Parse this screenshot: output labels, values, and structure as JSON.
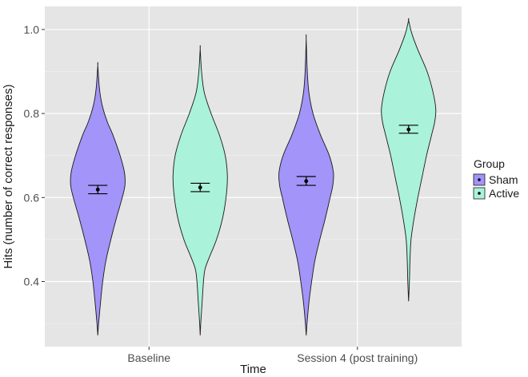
{
  "chart_data": {
    "type": "violin",
    "title": "",
    "xlabel": "Time",
    "ylabel": "Hits (number of correct responses)",
    "ylim": [
      0.245,
      1.055
    ],
    "y_ticks": [
      0.4,
      0.6,
      0.8,
      1.0
    ],
    "y_tick_labels": [
      "0.4",
      "0.6",
      "0.8",
      "1.0"
    ],
    "categories": [
      "Baseline",
      "Session 4 (post training)"
    ],
    "legend": {
      "title": "Group",
      "placement": "right",
      "items": [
        {
          "name": "Sham",
          "color": "#a294f8"
        },
        {
          "name": "Active",
          "color": "#aaf2d9"
        }
      ]
    },
    "series": [
      {
        "name": "Sham",
        "color": "#a294f8",
        "violins": [
          {
            "category": "Baseline",
            "min": 0.272,
            "max": 0.915,
            "mean": 0.619,
            "se_low": 0.609,
            "se_high": 0.629,
            "density": [
              [
                0.272,
                0.0
              ],
              [
                0.3,
                0.03
              ],
              [
                0.35,
                0.1
              ],
              [
                0.4,
                0.18
              ],
              [
                0.45,
                0.3
              ],
              [
                0.5,
                0.48
              ],
              [
                0.55,
                0.68
              ],
              [
                0.6,
                0.9
              ],
              [
                0.63,
                1.0
              ],
              [
                0.66,
                0.98
              ],
              [
                0.7,
                0.82
              ],
              [
                0.75,
                0.55
              ],
              [
                0.78,
                0.35
              ],
              [
                0.82,
                0.16
              ],
              [
                0.86,
                0.06
              ],
              [
                0.915,
                0.0
              ]
            ]
          },
          {
            "category": "Session 4 (post training)",
            "min": 0.272,
            "max": 0.978,
            "mean": 0.639,
            "se_low": 0.629,
            "se_high": 0.65,
            "density": [
              [
                0.272,
                0.0
              ],
              [
                0.3,
                0.03
              ],
              [
                0.35,
                0.1
              ],
              [
                0.4,
                0.2
              ],
              [
                0.45,
                0.32
              ],
              [
                0.5,
                0.5
              ],
              [
                0.55,
                0.7
              ],
              [
                0.6,
                0.88
              ],
              [
                0.63,
                0.98
              ],
              [
                0.66,
                1.0
              ],
              [
                0.7,
                0.85
              ],
              [
                0.75,
                0.52
              ],
              [
                0.8,
                0.25
              ],
              [
                0.85,
                0.1
              ],
              [
                0.9,
                0.04
              ],
              [
                0.978,
                0.0
              ]
            ]
          }
        ]
      },
      {
        "name": "Active",
        "color": "#aaf2d9",
        "violins": [
          {
            "category": "Baseline",
            "min": 0.272,
            "max": 0.955,
            "mean": 0.624,
            "se_low": 0.614,
            "se_high": 0.634,
            "density": [
              [
                0.272,
                0.0
              ],
              [
                0.3,
                0.02
              ],
              [
                0.35,
                0.07
              ],
              [
                0.4,
                0.12
              ],
              [
                0.43,
                0.18
              ],
              [
                0.46,
                0.35
              ],
              [
                0.5,
                0.6
              ],
              [
                0.55,
                0.82
              ],
              [
                0.6,
                0.95
              ],
              [
                0.65,
                1.0
              ],
              [
                0.7,
                0.92
              ],
              [
                0.75,
                0.7
              ],
              [
                0.8,
                0.4
              ],
              [
                0.85,
                0.15
              ],
              [
                0.9,
                0.05
              ],
              [
                0.955,
                0.0
              ]
            ]
          },
          {
            "category": "Session 4 (post training)",
            "min": 0.353,
            "max": 1.022,
            "mean": 0.762,
            "se_low": 0.753,
            "se_high": 0.772,
            "density": [
              [
                0.353,
                0.0
              ],
              [
                0.4,
                0.03
              ],
              [
                0.45,
                0.05
              ],
              [
                0.5,
                0.09
              ],
              [
                0.55,
                0.2
              ],
              [
                0.6,
                0.34
              ],
              [
                0.65,
                0.5
              ],
              [
                0.7,
                0.66
              ],
              [
                0.75,
                0.85
              ],
              [
                0.78,
                0.96
              ],
              [
                0.81,
                1.0
              ],
              [
                0.85,
                0.9
              ],
              [
                0.9,
                0.68
              ],
              [
                0.95,
                0.35
              ],
              [
                0.99,
                0.12
              ],
              [
                1.022,
                0.0
              ]
            ]
          }
        ]
      }
    ]
  }
}
